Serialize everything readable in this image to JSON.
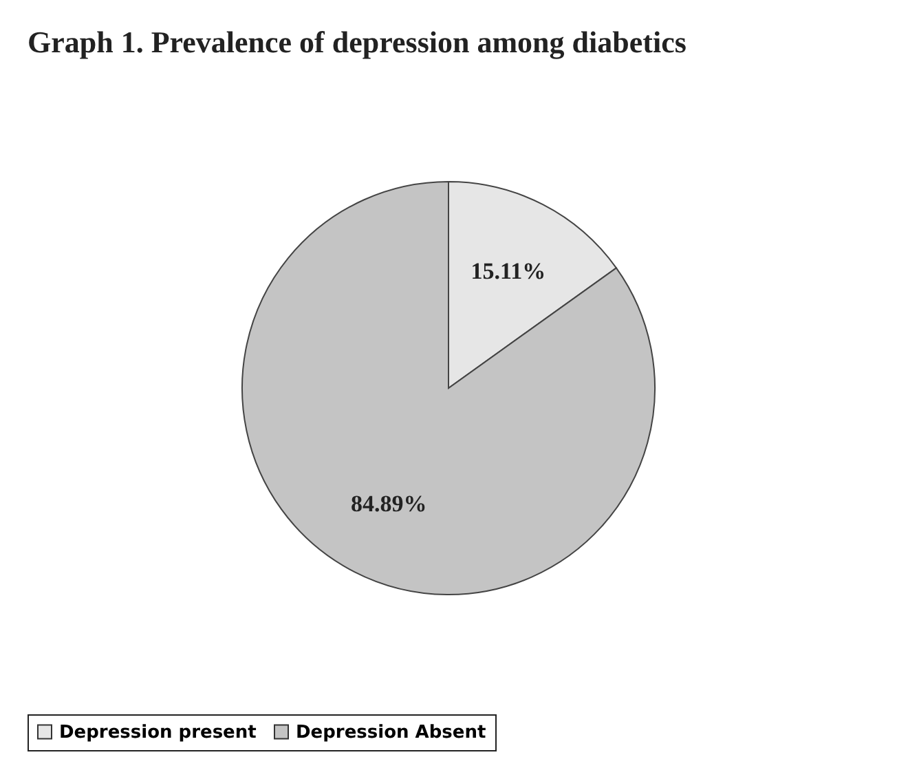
{
  "chart_data": {
    "type": "pie",
    "title": "Graph 1. Prevalence of depression among diabetics",
    "categories": [
      "Depression present",
      "Depression Absent"
    ],
    "values": [
      15.11,
      84.89
    ],
    "colors": [
      "#e6e6e6",
      "#c4c4c4"
    ],
    "value_labels": [
      "15.11%",
      "84.89%"
    ],
    "legend": "bottom"
  }
}
